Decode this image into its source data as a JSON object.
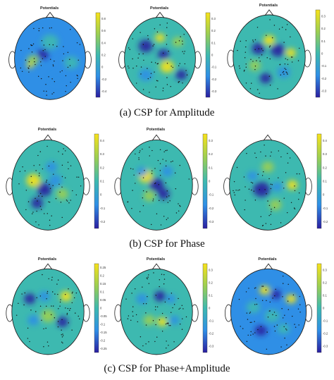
{
  "figure": {
    "rows": [
      {
        "caption": "(a) CSP for Amplitude",
        "maps": [
          {
            "title": "Potentials",
            "ticks": [
              "0.8",
              "0.6",
              "0.4",
              "0.2",
              "0",
              "-0.2",
              "-0.4"
            ]
          },
          {
            "title": "Potentials",
            "ticks": [
              "0.3",
              "0.2",
              "0.1",
              "0",
              "-0.1",
              "-0.2",
              "-0.3"
            ]
          },
          {
            "title": "Potentials",
            "ticks": [
              "0.3",
              "0.2",
              "0.1",
              "0",
              "-0.1",
              "-0.2",
              "-0.3"
            ]
          }
        ]
      },
      {
        "caption": "(b) CSP for Phase",
        "maps": [
          {
            "title": "Potentials",
            "ticks": [
              "0.4",
              "0.3",
              "0.2",
              "0.1",
              "0",
              "-0.1",
              "-0.2"
            ]
          },
          {
            "title": "Potentials",
            "ticks": [
              "0.3",
              "0.2",
              "0.1",
              "0",
              "-0.1",
              "-0.2",
              "-0.3"
            ]
          },
          {
            "title": "",
            "ticks": [
              "0.4",
              "0.3",
              "0.2",
              "0.1",
              "0",
              "-0.1",
              "-0.2"
            ]
          }
        ]
      },
      {
        "caption": "(c) CSP for Phase+Amplitude",
        "maps": [
          {
            "title": "Potentials",
            "ticks": [
              "0.25",
              "0.2",
              "0.15",
              "0.1",
              "0.05",
              "0",
              "-0.05",
              "-0.1",
              "-0.15",
              "-0.2",
              "-0.25"
            ]
          },
          {
            "title": "Potentials",
            "ticks": [
              "0.3",
              "0.2",
              "0.1",
              "0",
              "-0.1",
              "-0.2",
              "-0.3"
            ]
          },
          {
            "title": "Potentials",
            "ticks": [
              "0.3",
              "0.2",
              "0.1",
              "0",
              "-0.1",
              "-0.2",
              "-0.3"
            ]
          }
        ]
      }
    ]
  },
  "colors": {
    "map_low": "#2a1ea0",
    "map_mid_low": "#2f8fe6",
    "map_mid": "#3db9b0",
    "map_mid_high": "#9ccf52",
    "map_high": "#f7e21a",
    "outline": "#222222",
    "electrode": "#111111"
  }
}
